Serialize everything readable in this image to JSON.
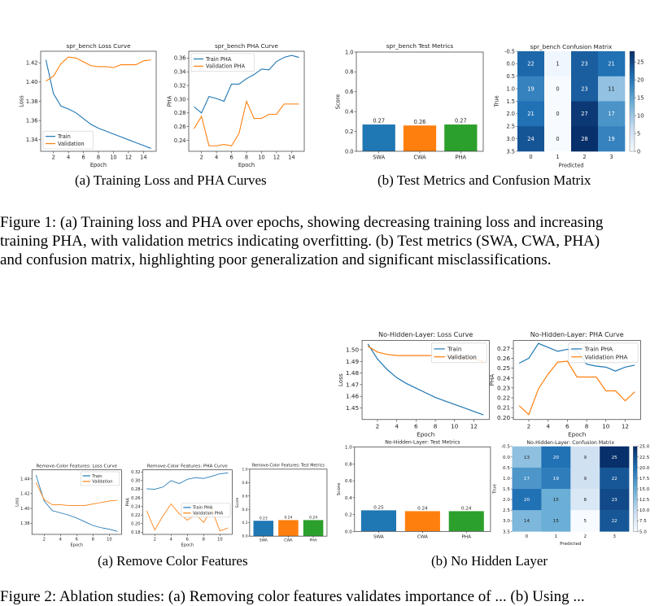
{
  "figure1": {
    "caption_a": "(a)  Training Loss and PHA Curves",
    "caption_b": "(b)  Test Metrics and Confusion Matrix",
    "text_lines": [
      "Figure 1: (a) Training loss and PHA over epochs, showing decreasing training loss and increasing",
      "training PHA, with validation metrics indicating overfitting.  (b) Test metrics (SWA, CWA, PHA)",
      "and confusion matrix, highlighting poor generalization and significant misclassifications."
    ]
  },
  "figure2": {
    "caption_a": "(a)  Remove Color Features",
    "caption_b": "(b)  No Hidden Layer",
    "text_partial": "Figure 2:  Ablation studies: (a) Removing color features validates importance of ... (b) Using ..."
  },
  "colors": {
    "blue": "#1f77b4",
    "orange": "#ff7f0e",
    "green": "#2ca02c"
  },
  "chart_data": [
    {
      "id": "f1_loss",
      "type": "line",
      "title": "spr_bench Loss Curve",
      "xlabel": "Epoch",
      "ylabel": "Loss",
      "xlim": [
        0.3,
        15.7
      ],
      "ylim": [
        1.328,
        1.432
      ],
      "xticks": [
        2,
        4,
        6,
        8,
        10,
        12,
        14
      ],
      "yticks": [
        1.34,
        1.36,
        1.38,
        1.4,
        1.42
      ],
      "tick_decimals": 2,
      "legend_position": "lower-left",
      "x": [
        1,
        2,
        3,
        4,
        5,
        6,
        7,
        8,
        9,
        10,
        11,
        12,
        13,
        14,
        15
      ],
      "series": [
        {
          "name": "Train",
          "color": "#1f77b4",
          "values": [
            1.423,
            1.388,
            1.375,
            1.372,
            1.368,
            1.362,
            1.356,
            1.352,
            1.349,
            1.346,
            1.343,
            1.34,
            1.337,
            1.334,
            1.331
          ]
        },
        {
          "name": "Validation",
          "color": "#ff7f0e",
          "values": [
            1.401,
            1.406,
            1.419,
            1.426,
            1.425,
            1.421,
            1.417,
            1.416,
            1.416,
            1.415,
            1.418,
            1.418,
            1.418,
            1.422,
            1.423
          ]
        }
      ]
    },
    {
      "id": "f1_pha",
      "type": "line",
      "title": "spr_bench PHA Curve",
      "xlabel": "Epoch",
      "ylabel": "PHA",
      "xlim": [
        0.3,
        15.7
      ],
      "ylim": [
        0.224,
        0.37
      ],
      "xticks": [
        2,
        4,
        6,
        8,
        10,
        12,
        14
      ],
      "yticks": [
        0.24,
        0.26,
        0.28,
        0.3,
        0.32,
        0.34,
        0.36
      ],
      "tick_decimals": 2,
      "legend_position": "upper-left",
      "x": [
        1,
        2,
        3,
        4,
        5,
        6,
        7,
        8,
        9,
        10,
        11,
        12,
        13,
        14,
        15
      ],
      "series": [
        {
          "name": "Train PHA",
          "color": "#1f77b4",
          "values": [
            0.289,
            0.28,
            0.304,
            0.301,
            0.297,
            0.322,
            0.322,
            0.33,
            0.336,
            0.344,
            0.343,
            0.355,
            0.361,
            0.364,
            0.361
          ]
        },
        {
          "name": "Validation PHA",
          "color": "#ff7f0e",
          "values": [
            0.257,
            0.275,
            0.232,
            0.232,
            0.234,
            0.232,
            0.25,
            0.297,
            0.272,
            0.272,
            0.278,
            0.278,
            0.293,
            0.293,
            0.293
          ]
        }
      ]
    },
    {
      "id": "f1_metrics",
      "type": "bar",
      "title": "spr_bench Test Metrics",
      "ylabel": "Score",
      "ylim": [
        0,
        1.0
      ],
      "yticks": [
        0.0,
        0.2,
        0.4,
        0.6,
        0.8,
        1.0
      ],
      "tick_decimals": 1,
      "categories": [
        "SWA",
        "CWA",
        "PHA"
      ],
      "values": [
        0.27,
        0.26,
        0.27
      ],
      "value_labels": [
        "0.27",
        "0.26",
        "0.27"
      ],
      "colors": [
        "#1f77b4",
        "#ff7f0e",
        "#2ca02c"
      ]
    },
    {
      "id": "f1_cm",
      "type": "heatmap",
      "title": "spr_bench Confusion Matrix",
      "xlabel": "Predicted",
      "ylabel": "True",
      "xticks": [
        "0",
        "1",
        "2",
        "3"
      ],
      "yticks": [
        "-0.5",
        "0.0",
        "0.5",
        "1.0",
        "1.5",
        "2.0",
        "2.5",
        "3.0",
        "3.5"
      ],
      "colorbar_ticks": [
        "0",
        "5",
        "10",
        "15",
        "20",
        "25"
      ],
      "vmin": 0,
      "vmax": 28,
      "matrix": [
        [
          22,
          1,
          23,
          21
        ],
        [
          19,
          0,
          23,
          11
        ],
        [
          21,
          0,
          27,
          17
        ],
        [
          24,
          0,
          28,
          19
        ]
      ]
    },
    {
      "id": "f2a_loss",
      "type": "line",
      "title": "Remove-Color Features: Loss Curve",
      "xlabel": "Epoch",
      "ylabel": "Loss",
      "xlim": [
        0.5,
        11.5
      ],
      "ylim": [
        1.365,
        1.452
      ],
      "xticks": [
        2,
        4,
        6,
        8,
        10
      ],
      "yticks": [
        1.38,
        1.4,
        1.42,
        1.44
      ],
      "tick_decimals": 2,
      "legend_position": "upper-right",
      "x": [
        1,
        2,
        3,
        4,
        5,
        6,
        7,
        8,
        9,
        10,
        11
      ],
      "series": [
        {
          "name": "Train",
          "color": "#1f77b4",
          "values": [
            1.445,
            1.41,
            1.397,
            1.394,
            1.391,
            1.387,
            1.382,
            1.377,
            1.374,
            1.372,
            1.369
          ]
        },
        {
          "name": "Validation",
          "color": "#ff7f0e",
          "values": [
            1.435,
            1.412,
            1.405,
            1.405,
            1.404,
            1.404,
            1.404,
            1.406,
            1.408,
            1.41,
            1.411
          ]
        }
      ]
    },
    {
      "id": "f2a_pha",
      "type": "line",
      "title": "Remove-Color Features: PHA Curve",
      "xlabel": "Epoch",
      "ylabel": "PHA",
      "xlim": [
        0.5,
        11.5
      ],
      "ylim": [
        0.175,
        0.325
      ],
      "xticks": [
        2,
        4,
        6,
        8,
        10
      ],
      "yticks": [
        0.18,
        0.2,
        0.22,
        0.24,
        0.26,
        0.28,
        0.3,
        0.32
      ],
      "tick_decimals": 2,
      "legend_position": "center-right",
      "x": [
        1,
        2,
        3,
        4,
        5,
        6,
        7,
        8,
        9,
        10,
        11
      ],
      "series": [
        {
          "name": "Train PHA",
          "color": "#1f77b4",
          "values": [
            0.281,
            0.28,
            0.285,
            0.3,
            0.293,
            0.303,
            0.307,
            0.305,
            0.31,
            0.316,
            0.318
          ]
        },
        {
          "name": "Validation PHA",
          "color": "#ff7f0e",
          "values": [
            0.23,
            0.185,
            0.218,
            0.246,
            0.223,
            0.208,
            0.222,
            0.203,
            0.233,
            0.183,
            0.19
          ]
        }
      ]
    },
    {
      "id": "f2a_metrics",
      "type": "bar",
      "title": "Remove-Color Features: Test Metrics",
      "ylabel": "Score",
      "ylim": [
        0,
        1.0
      ],
      "yticks": [
        0.0,
        0.2,
        0.4,
        0.6,
        0.8,
        1.0
      ],
      "tick_decimals": 1,
      "categories": [
        "SWA",
        "CWA",
        "PHA"
      ],
      "values": [
        0.23,
        0.24,
        0.24
      ],
      "value_labels": [
        "0.23",
        "0.24",
        "0.24"
      ],
      "colors": [
        "#1f77b4",
        "#ff7f0e",
        "#2ca02c"
      ]
    },
    {
      "id": "f2b_loss",
      "type": "line",
      "title": "No-Hidden-Layer: Loss Curve",
      "xlabel": "Epoch",
      "ylabel": "Loss",
      "xlim": [
        0.4,
        13.6
      ],
      "ylim": [
        1.44,
        1.508
      ],
      "xticks": [
        2,
        4,
        6,
        8,
        10,
        12
      ],
      "yticks": [
        1.45,
        1.46,
        1.47,
        1.48,
        1.49,
        1.5
      ],
      "tick_decimals": 2,
      "legend_position": "upper-right",
      "x": [
        1,
        2,
        3,
        4,
        5,
        6,
        7,
        8,
        9,
        10,
        11,
        12,
        13
      ],
      "series": [
        {
          "name": "Train",
          "color": "#1f77b4",
          "values": [
            1.505,
            1.492,
            1.483,
            1.476,
            1.471,
            1.467,
            1.463,
            1.459,
            1.456,
            1.453,
            1.45,
            1.447,
            1.444
          ]
        },
        {
          "name": "Validation",
          "color": "#ff7f0e",
          "values": [
            1.503,
            1.498,
            1.496,
            1.495,
            1.495,
            1.495,
            1.495,
            1.495,
            1.494,
            1.494,
            1.493,
            1.492,
            1.49
          ]
        }
      ]
    },
    {
      "id": "f2b_pha",
      "type": "line",
      "title": "No-Hidden-Layer: PHA Curve",
      "xlabel": "Epoch",
      "ylabel": "PHA",
      "xlim": [
        0.4,
        13.6
      ],
      "ylim": [
        0.198,
        0.278
      ],
      "xticks": [
        2,
        4,
        6,
        8,
        10,
        12
      ],
      "yticks": [
        0.2,
        0.21,
        0.22,
        0.23,
        0.24,
        0.25,
        0.26,
        0.27
      ],
      "tick_decimals": 2,
      "legend_position": "upper-right",
      "x": [
        1,
        2,
        3,
        4,
        5,
        6,
        7,
        8,
        9,
        10,
        11,
        12,
        13
      ],
      "series": [
        {
          "name": "Train PHA",
          "color": "#1f77b4",
          "values": [
            0.255,
            0.26,
            0.275,
            0.271,
            0.267,
            0.269,
            0.268,
            0.254,
            0.252,
            0.251,
            0.247,
            0.251,
            0.253
          ]
        },
        {
          "name": "Validation PHA",
          "color": "#ff7f0e",
          "values": [
            0.212,
            0.203,
            0.229,
            0.244,
            0.256,
            0.257,
            0.241,
            0.241,
            0.241,
            0.227,
            0.227,
            0.217,
            0.226
          ]
        }
      ]
    },
    {
      "id": "f2b_metrics",
      "type": "bar",
      "title": "No-Hidden-Layer: Test Metrics",
      "ylabel": "Score",
      "ylim": [
        0,
        1.0
      ],
      "yticks": [
        0.0,
        0.2,
        0.4,
        0.6,
        0.8,
        1.0
      ],
      "tick_decimals": 1,
      "categories": [
        "SWA",
        "CWA",
        "PHA"
      ],
      "values": [
        0.25,
        0.24,
        0.24
      ],
      "value_labels": [
        "0.25",
        "0.24",
        "0.24"
      ],
      "colors": [
        "#1f77b4",
        "#ff7f0e",
        "#2ca02c"
      ]
    },
    {
      "id": "f2b_cm",
      "type": "heatmap",
      "title": "No-Hidden-Layer: Confusion Matrix",
      "xlabel": "Predicted",
      "ylabel": "True",
      "xticks": [
        "0",
        "1",
        "2",
        "3"
      ],
      "yticks": [
        "-0.5",
        "0.0",
        "0.5",
        "1.0",
        "1.5",
        "2.0",
        "2.5",
        "3.0",
        "3.5"
      ],
      "colorbar_ticks": [
        "5.0",
        "7.5",
        "10.0",
        "12.5",
        "15.0",
        "17.5",
        "20.0",
        "22.5",
        "25.0"
      ],
      "vmin": 5,
      "vmax": 25,
      "matrix": [
        [
          13,
          20,
          9,
          25
        ],
        [
          17,
          19,
          9,
          22
        ],
        [
          20,
          15,
          8,
          23
        ],
        [
          14,
          15,
          5,
          22
        ]
      ]
    }
  ]
}
